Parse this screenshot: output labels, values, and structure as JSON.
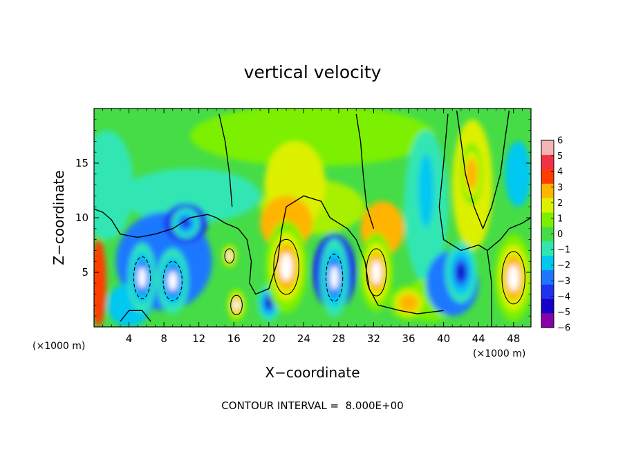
{
  "chart_data": {
    "type": "heatmap",
    "title": "vertical velocity",
    "xlabel": "X−coordinate",
    "ylabel": "Z−coordinate",
    "x_unit": "(×1000 m)",
    "y_unit": "(×1000 m)",
    "xlim": [
      0,
      50
    ],
    "ylim": [
      0,
      20
    ],
    "x_ticks": [
      4,
      8,
      12,
      16,
      20,
      24,
      28,
      32,
      36,
      40,
      44,
      48
    ],
    "x_tick_labels": [
      "4",
      "8",
      "12",
      "16",
      "20",
      "24",
      "28",
      "32",
      "36",
      "40",
      "44",
      "48"
    ],
    "y_ticks": [
      5,
      10,
      15
    ],
    "y_tick_labels": [
      "5",
      "10",
      "15"
    ],
    "colorbar": {
      "range": [
        -6,
        6
      ],
      "tick_labels": [
        "6",
        "5",
        "4",
        "3",
        "2",
        "1",
        "0",
        "−1",
        "−2",
        "−3",
        "−4",
        "−5",
        "−6"
      ],
      "colors": [
        "#8800aa",
        "#1400c8",
        "#1e32f0",
        "#1e78ff",
        "#00c8f0",
        "#32e6b4",
        "#46dc46",
        "#7cf000",
        "#dcf000",
        "#ffb400",
        "#ff3c00",
        "#f03246",
        "#f5b4b4"
      ]
    },
    "features": [
      {
        "kind": "downdraft",
        "x": 5.5,
        "z": 4.5,
        "value": -6
      },
      {
        "kind": "downdraft",
        "x": 9,
        "z": 4.2,
        "value": -6
      },
      {
        "kind": "downdraft",
        "x": 10.5,
        "z": 9.5,
        "value": -4
      },
      {
        "kind": "updraft",
        "x": 15.5,
        "z": 6.5,
        "value": 6
      },
      {
        "kind": "updraft",
        "x": 16.3,
        "z": 2.0,
        "value": 6
      },
      {
        "kind": "downdraft",
        "x": 20,
        "z": 2.2,
        "value": -5
      },
      {
        "kind": "updraft",
        "x": 22,
        "z": 5.5,
        "value": 6
      },
      {
        "kind": "downdraft",
        "x": 27.5,
        "z": 4.5,
        "value": -6
      },
      {
        "kind": "updraft",
        "x": 32.3,
        "z": 5.0,
        "value": 6
      },
      {
        "kind": "updraft",
        "x": 36,
        "z": 2.2,
        "value": 3
      },
      {
        "kind": "downdraft",
        "x": 42,
        "z": 5.0,
        "value": -5
      },
      {
        "kind": "updraft",
        "x": 43.2,
        "z": 14.0,
        "value": 3
      },
      {
        "kind": "updraft",
        "x": 48,
        "z": 4.5,
        "value": 6
      },
      {
        "kind": "downdraft",
        "x": 38,
        "z": 12.5,
        "value": -2
      }
    ]
  },
  "footer": {
    "contour_interval": "CONTOUR INTERVAL =  8.000E+00"
  }
}
